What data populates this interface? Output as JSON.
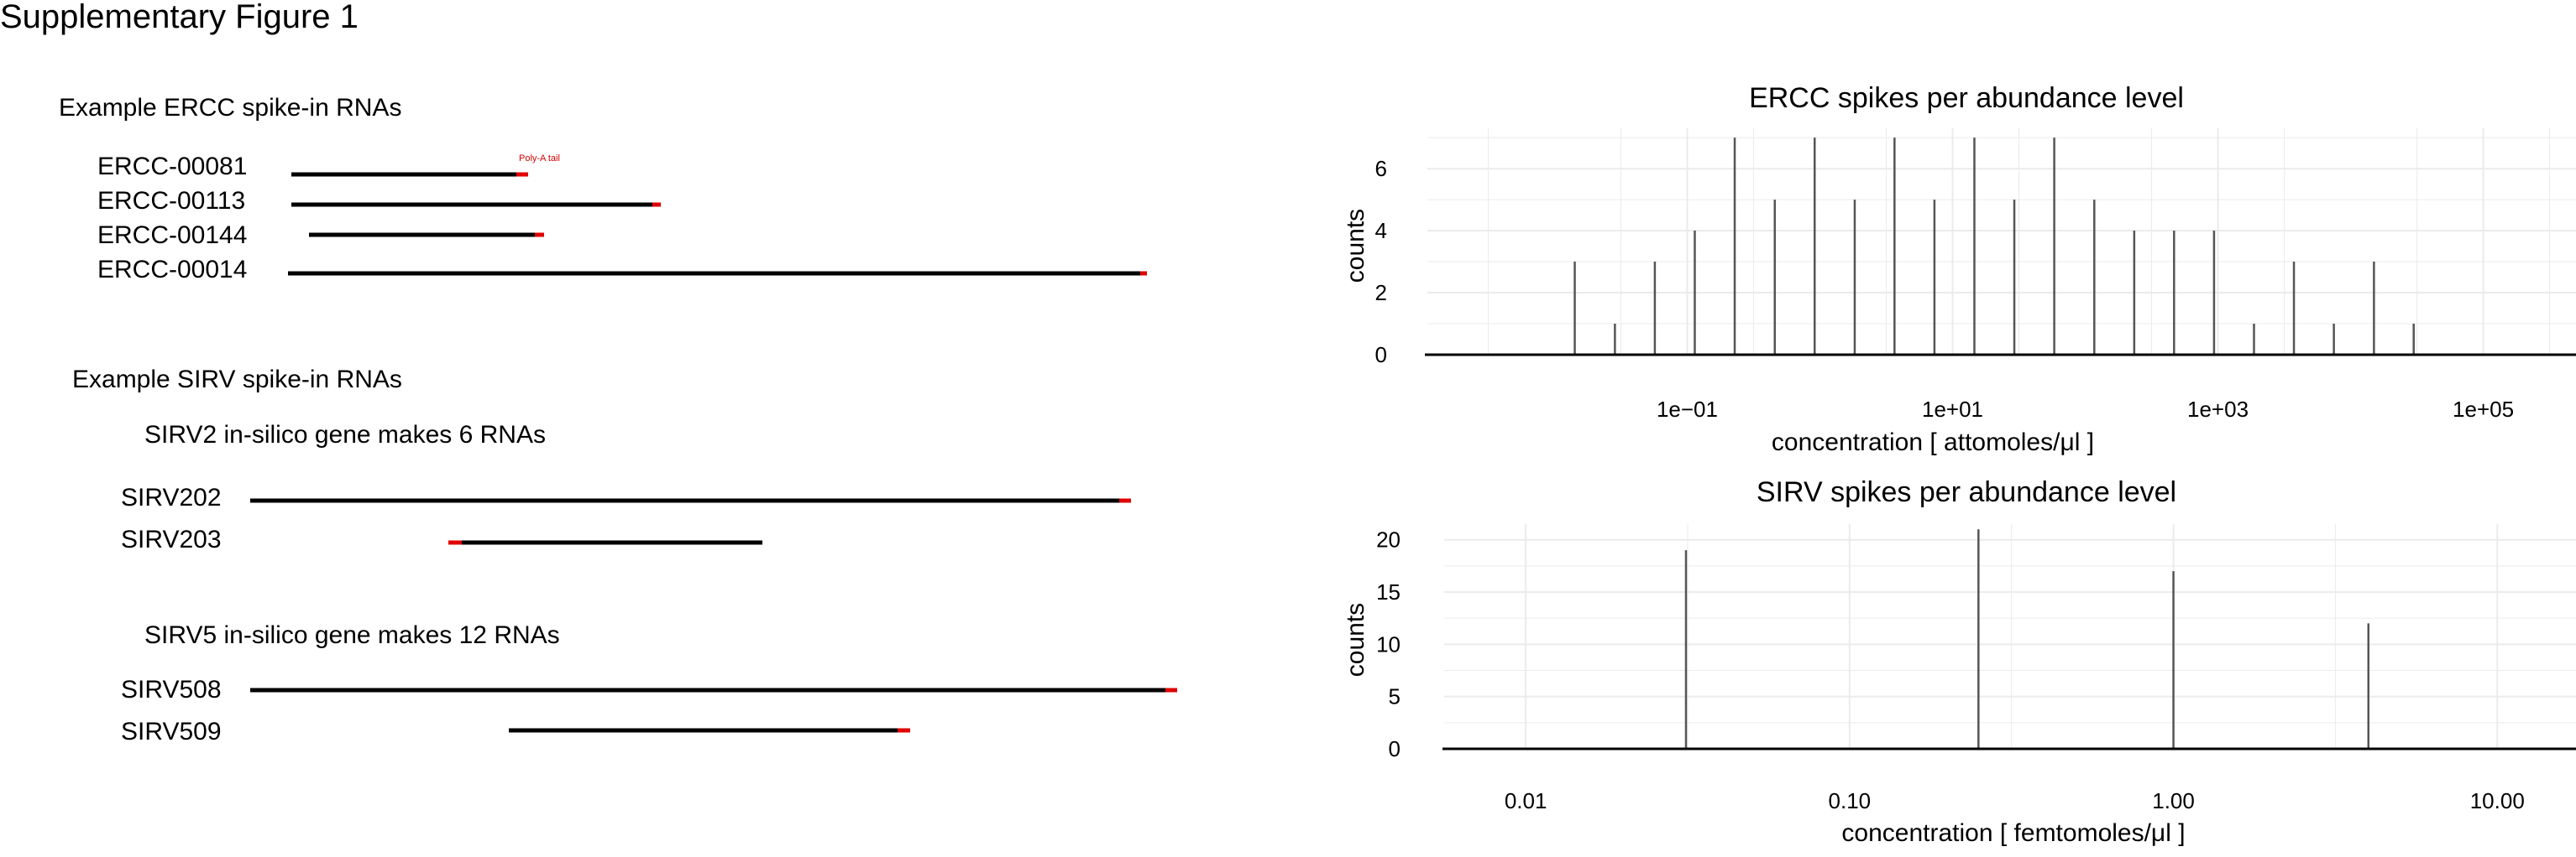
{
  "figure": {
    "title": "Supplementary Figure 1"
  },
  "ercc_panel": {
    "heading": "Example ERCC spike-in RNAs",
    "annotation": "Poly-A tail",
    "rnas": [
      {
        "name": "ERCC-00081"
      },
      {
        "name": "ERCC-00113"
      },
      {
        "name": "ERCC-00144"
      },
      {
        "name": "ERCC-00014"
      }
    ]
  },
  "sirv_panel": {
    "heading": "Example SIRV spike-in RNAs",
    "groups": [
      {
        "title": "SIRV2 in-silico gene makes 6 RNAs",
        "rnas": [
          {
            "name": "SIRV202"
          },
          {
            "name": "SIRV203"
          }
        ]
      },
      {
        "title": "SIRV5 in-silico gene makes 12 RNAs",
        "rnas": [
          {
            "name": "SIRV508"
          },
          {
            "name": "SIRV509"
          }
        ]
      }
    ]
  },
  "colors": {
    "rna_body": "#000000",
    "poly_a_tail": "#e00000",
    "spike": "#555555",
    "grid": "#ebebeb"
  },
  "chart_data": [
    {
      "type": "bar",
      "title": "ERCC spikes per abundance level",
      "xlabel": "concentration [ attomoles/μl ]",
      "ylabel": "counts",
      "x_scale": "log10",
      "x_ticks": [
        {
          "value": 0.1,
          "label": "1e−01"
        },
        {
          "value": 10,
          "label": "1e+01"
        },
        {
          "value": 1000,
          "label": "1e+03"
        },
        {
          "value": 100000,
          "label": "1e+05"
        }
      ],
      "y_ticks": [
        0,
        2,
        4,
        6
      ],
      "xlim": [
        0.0011,
        500000
      ],
      "ylim": [
        0,
        7.3
      ],
      "grid": true,
      "x": [
        0.0142,
        0.0285,
        0.057,
        0.114,
        0.228,
        0.457,
        0.913,
        1.83,
        3.65,
        7.3,
        14.6,
        29.2,
        58.4,
        117,
        234,
        467,
        935,
        1870,
        3740,
        7480,
        15000,
        29900
      ],
      "values": [
        3,
        1,
        3,
        4,
        7,
        5,
        7,
        5,
        7,
        5,
        7,
        5,
        7,
        5,
        4,
        4,
        4,
        1,
        3,
        1,
        3,
        1
      ]
    },
    {
      "type": "bar",
      "title": "SIRV spikes per abundance level",
      "xlabel": "concentration [ femtomoles/μl ]",
      "ylabel": "counts",
      "x_scale": "log10",
      "x_ticks": [
        {
          "value": 0.01,
          "label": "0.01"
        },
        {
          "value": 0.1,
          "label": "0.10"
        },
        {
          "value": 1,
          "label": "1.00"
        },
        {
          "value": 10,
          "label": "10.00"
        }
      ],
      "y_ticks": [
        0,
        5,
        10,
        15,
        20
      ],
      "xlim": [
        0.0056,
        17.5
      ],
      "ylim": [
        0,
        21.5
      ],
      "grid": true,
      "x": [
        0.03125,
        0.25,
        1,
        4
      ],
      "values": [
        19,
        21,
        17,
        12
      ]
    }
  ]
}
